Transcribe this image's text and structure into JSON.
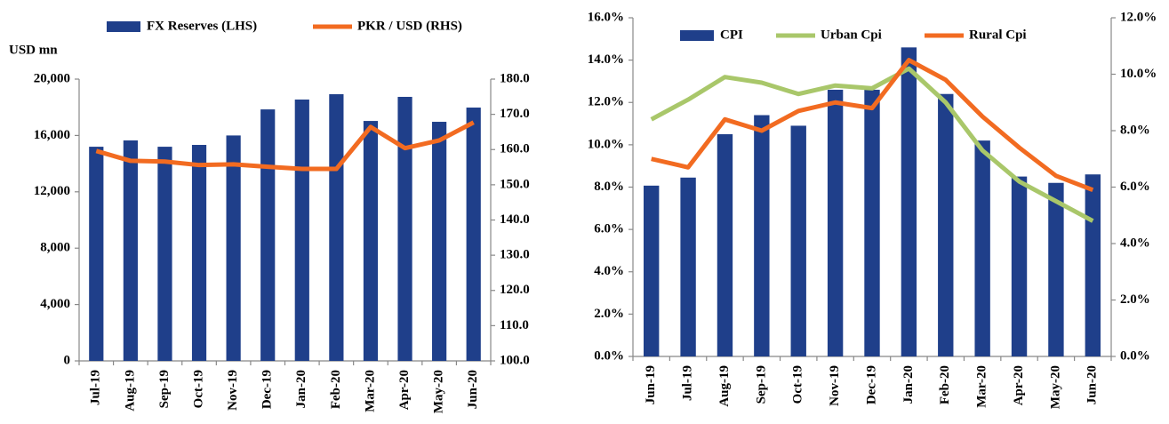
{
  "chart_data": [
    {
      "type": "bar",
      "y_label": "USD mn",
      "categories": [
        "Jul-19",
        "Aug-19",
        "Sep-19",
        "Oct-19",
        "Nov-19",
        "Dec-19",
        "Jan-20",
        "Feb-20",
        "Mar-20",
        "Apr-20",
        "May-20",
        "Jun-20"
      ],
      "series": [
        {
          "name": "FX Reserves (LHS)",
          "type": "bar",
          "color": "#1f3f8a",
          "axis": "y",
          "values": [
            15200,
            15650,
            15200,
            15330,
            16000,
            17850,
            18550,
            18930,
            17030,
            18740,
            16970,
            17980
          ]
        },
        {
          "name": "PKR / USD (RHS)",
          "type": "line",
          "color": "#f26b21",
          "axis": "y2",
          "values": [
            159.6,
            156.8,
            156.6,
            155.6,
            155.8,
            155.1,
            154.5,
            154.5,
            166.4,
            160.4,
            162.6,
            167.7
          ]
        }
      ],
      "ylim": [
        0,
        20000
      ],
      "yticks": [
        0,
        {
          "value": 4000,
          "label": "4,000"
        },
        {
          "value": 8000,
          "label": "8,000"
        },
        {
          "value": 12000,
          "label": "12,000"
        },
        {
          "value": 16000,
          "label": "16,000"
        },
        {
          "value": 20000,
          "label": "20,000"
        }
      ],
      "y2lim": [
        100,
        180
      ],
      "y2ticks": [
        {
          "value": 100,
          "label": "100.0"
        },
        {
          "value": 110,
          "label": "110.0"
        },
        {
          "value": 120,
          "label": "120.0"
        },
        {
          "value": 130,
          "label": "130.0"
        },
        {
          "value": 140,
          "label": "140.0"
        },
        {
          "value": 150,
          "label": "150.0"
        },
        {
          "value": 160,
          "label": "160.0"
        },
        {
          "value": 170,
          "label": "170.0"
        },
        {
          "value": 180,
          "label": "180.0"
        }
      ],
      "legend": "top"
    },
    {
      "type": "bar",
      "categories": [
        "Jun-19",
        "Jul-19",
        "Aug-19",
        "Sep-19",
        "Oct-19",
        "Nov-19",
        "Dec-19",
        "Jan-20",
        "Feb-20",
        "Mar-20",
        "Apr-20",
        "May-20",
        "Jun-20"
      ],
      "series": [
        {
          "name": "CPI",
          "type": "bar",
          "color": "#1f3f8a",
          "axis": "y",
          "values": [
            8.07,
            8.45,
            10.5,
            11.4,
            10.9,
            12.6,
            12.6,
            14.6,
            12.4,
            10.2,
            8.5,
            8.2,
            8.6
          ]
        },
        {
          "name": "Urban Cpi",
          "type": "line",
          "color": "#a9c76a",
          "axis": "y2",
          "values": [
            8.4,
            9.1,
            9.9,
            9.7,
            9.3,
            9.6,
            9.5,
            10.2,
            9.0,
            7.3,
            6.2,
            5.5,
            4.8
          ]
        },
        {
          "name": "Rural Cpi",
          "type": "line",
          "color": "#f26b21",
          "axis": "y2",
          "values": [
            7.0,
            6.7,
            8.4,
            8.0,
            8.7,
            9.0,
            8.8,
            10.5,
            9.8,
            8.5,
            7.4,
            6.4,
            5.9
          ]
        }
      ],
      "ylim": [
        0,
        16
      ],
      "yticks": [
        {
          "value": 0,
          "label": "0.0%"
        },
        {
          "value": 2,
          "label": "2.0%"
        },
        {
          "value": 4,
          "label": "4.0%"
        },
        {
          "value": 6,
          "label": "6.0%"
        },
        {
          "value": 8,
          "label": "8.0%"
        },
        {
          "value": 10,
          "label": "10.0%"
        },
        {
          "value": 12,
          "label": "12.0%"
        },
        {
          "value": 14,
          "label": "14.0%"
        },
        {
          "value": 16,
          "label": "16.0%"
        }
      ],
      "y2lim": [
        0,
        12
      ],
      "y2ticks": [
        {
          "value": 0,
          "label": "0.0%"
        },
        {
          "value": 2,
          "label": "2.0%"
        },
        {
          "value": 4,
          "label": "4.0%"
        },
        {
          "value": 6,
          "label": "6.0%"
        },
        {
          "value": 8,
          "label": "8.0%"
        },
        {
          "value": 10,
          "label": "10.0%"
        },
        {
          "value": 12,
          "label": "12.0%"
        }
      ],
      "legend": "top"
    }
  ]
}
